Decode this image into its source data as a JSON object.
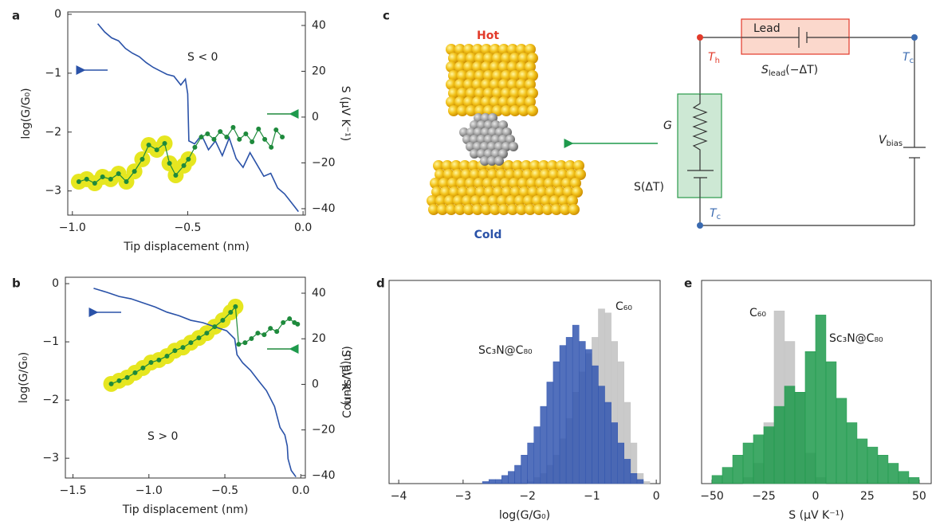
{
  "chart_data": [
    {
      "type": "line",
      "panel_label": "a",
      "xlabel": "Tip displacement (nm)",
      "ylabel": "log(G/G₀)",
      "y2label": "S (μV K⁻¹)",
      "annotation": "S < 0",
      "xlim": [
        -1.02,
        0.01
      ],
      "xticks": [
        {
          "value": -1,
          "label": "−1.0"
        },
        {
          "value": -0.5,
          "label": "−0.5"
        },
        {
          "value": 0,
          "label": "0.0"
        }
      ],
      "ylim": [
        -3.41,
        0.04
      ],
      "yticks": [
        0,
        {
          "value": -1,
          "label": "−1"
        },
        {
          "value": -2,
          "label": "−2"
        },
        {
          "value": -3,
          "label": "−3"
        }
      ],
      "y2lim": [
        -42.8,
        45.9
      ],
      "y2ticks": [
        40,
        20,
        0,
        {
          "value": -20,
          "label": "−20"
        },
        {
          "value": -40,
          "label": "−40"
        }
      ],
      "series": [
        {
          "color": "#2a52a8",
          "x": [
            -0.89,
            -0.86,
            -0.83,
            -0.8,
            -0.77,
            -0.74,
            -0.71,
            -0.68,
            -0.65,
            -0.62,
            -0.59,
            -0.56,
            -0.53,
            -0.51,
            -0.5,
            -0.495,
            -0.47,
            -0.44,
            -0.41,
            -0.38,
            -0.35,
            -0.32,
            -0.29,
            -0.26,
            -0.23,
            -0.2,
            -0.17,
            -0.14,
            -0.11,
            -0.08,
            -0.06,
            -0.04,
            -0.02
          ],
          "values": [
            -0.16,
            -0.3,
            -0.4,
            -0.45,
            -0.58,
            -0.66,
            -0.72,
            -0.82,
            -0.9,
            -0.96,
            -1.02,
            -1.05,
            -1.2,
            -1.1,
            -1.35,
            -2.15,
            -2.2,
            -2.05,
            -2.3,
            -2.15,
            -2.4,
            -2.1,
            -2.45,
            -2.6,
            -2.35,
            -2.55,
            -2.75,
            -2.7,
            -2.95,
            -3.05,
            -3.15,
            -3.25,
            -3.35
          ]
        },
        {
          "color": "#1e8a3c",
          "axis": "y2",
          "marker": "circle",
          "highlight_color": "#e6e620",
          "x": [
            -0.972,
            -0.938,
            -0.903,
            -0.869,
            -0.834,
            -0.8,
            -0.766,
            -0.731,
            -0.697,
            -0.669,
            -0.634,
            -0.6,
            -0.579,
            -0.552,
            -0.517,
            -0.497,
            -0.469,
            -0.441,
            -0.414,
            -0.386,
            -0.359,
            -0.331,
            -0.303,
            -0.276,
            -0.248,
            -0.221,
            -0.193,
            -0.166,
            -0.138,
            -0.117,
            -0.09
          ],
          "values": [
            -28.2,
            -27.1,
            -28.9,
            -26.1,
            -27.1,
            -24.7,
            -28.2,
            -23.7,
            -18.4,
            -12.2,
            -14.3,
            -11.5,
            -20.2,
            -25.4,
            -21.2,
            -18.4,
            -13.2,
            -8.7,
            -7.3,
            -9.7,
            -6.3,
            -8.7,
            -4.5,
            -9.7,
            -7.3,
            -10.8,
            -5.2,
            -9.7,
            -13.2,
            -5.6,
            -8.7
          ],
          "highlight": [
            true,
            true,
            true,
            true,
            true,
            true,
            true,
            true,
            true,
            true,
            true,
            true,
            true,
            true,
            true,
            true,
            false,
            false,
            false,
            false,
            false,
            false,
            false,
            false,
            false,
            false,
            false,
            false,
            false,
            false,
            false
          ]
        }
      ]
    },
    {
      "type": "line",
      "panel_label": "b",
      "xlabel": "Tip displacement (nm)",
      "ylabel": "log(G/G₀)",
      "y2label": "S (μV K⁻¹)",
      "annotation": "S > 0",
      "xlim": [
        -1.55,
        0.03
      ],
      "xticks": [
        {
          "value": -1.5,
          "label": "−1.5"
        },
        {
          "value": -1,
          "label": "−1.0"
        },
        {
          "value": -0.5,
          "label": "−0.5"
        },
        {
          "value": 0,
          "label": "0.0"
        }
      ],
      "ylim": [
        -3.34,
        0.11
      ],
      "yticks": [
        0,
        {
          "value": -1,
          "label": "−1"
        },
        {
          "value": -2,
          "label": "−2"
        },
        {
          "value": -3,
          "label": "−3"
        }
      ],
      "y2lim": [
        -41.1,
        47.0
      ],
      "y2ticks": [
        40,
        20,
        0,
        {
          "value": -20,
          "label": "−20"
        },
        {
          "value": -40,
          "label": "−40"
        }
      ],
      "series": [
        {
          "color": "#2a52a8",
          "x": [
            -1.364,
            -1.275,
            -1.196,
            -1.118,
            -1.039,
            -0.96,
            -0.881,
            -0.802,
            -0.724,
            -0.645,
            -0.567,
            -0.488,
            -0.435,
            -0.42,
            -0.383,
            -0.331,
            -0.278,
            -0.226,
            -0.173,
            -0.137,
            -0.105,
            -0.089,
            -0.084,
            -0.063,
            -0.032
          ],
          "values": [
            -0.08,
            -0.15,
            -0.22,
            -0.26,
            -0.33,
            -0.4,
            -0.49,
            -0.55,
            -0.63,
            -0.67,
            -0.74,
            -0.81,
            -0.95,
            -1.22,
            -1.36,
            -1.49,
            -1.67,
            -1.84,
            -2.11,
            -2.47,
            -2.6,
            -2.79,
            -3.01,
            -3.21,
            -3.32
          ]
        },
        {
          "color": "#1e8a3c",
          "axis": "y2",
          "marker": "circle",
          "highlight_color": "#e6e620",
          "x": [
            -1.248,
            -1.196,
            -1.143,
            -1.091,
            -1.039,
            -0.986,
            -0.934,
            -0.881,
            -0.829,
            -0.776,
            -0.724,
            -0.671,
            -0.619,
            -0.567,
            -0.514,
            -0.462,
            -0.43,
            -0.409,
            -0.367,
            -0.325,
            -0.283,
            -0.241,
            -0.2,
            -0.158,
            -0.116,
            -0.074,
            -0.042,
            -0.021
          ],
          "values": [
            0.2,
            1.6,
            3.0,
            5.1,
            7.2,
            9.6,
            10.7,
            12.4,
            14.8,
            16.2,
            18.3,
            20.4,
            22.5,
            25.3,
            28.1,
            31.6,
            34.1,
            17.6,
            18.3,
            20.1,
            22.5,
            21.8,
            24.6,
            23.2,
            27.1,
            28.8,
            27.1,
            26.4
          ],
          "highlight": [
            true,
            true,
            true,
            true,
            true,
            true,
            true,
            true,
            true,
            true,
            true,
            true,
            true,
            true,
            true,
            true,
            true,
            false,
            false,
            false,
            false,
            false,
            false,
            false,
            false,
            false,
            false,
            false
          ]
        }
      ]
    },
    {
      "type": "histogram",
      "panel_label": "d",
      "xlabel": "log(G/G₀)",
      "ylabel": "Counts (a.u.)",
      "xlim": [
        -4.15,
        0.06
      ],
      "xticks": [
        {
          "value": -4,
          "label": "−4"
        },
        {
          "value": -3,
          "label": "−3"
        },
        {
          "value": -2,
          "label": "−2"
        },
        {
          "value": -1,
          "label": "−1"
        },
        0
      ],
      "ylim": [
        0,
        100
      ],
      "bins": [
        -2.7,
        -2.6,
        -2.5,
        -2.4,
        -2.3,
        -2.2,
        -2.1,
        -2.0,
        -1.9,
        -1.8,
        -1.7,
        -1.6,
        -1.5,
        -1.4,
        -1.3,
        -1.2,
        -1.1,
        -1.0,
        -0.9,
        -0.8,
        -0.7,
        -0.6,
        -0.5,
        -0.4,
        -0.3,
        -0.2,
        -0.1
      ],
      "series": [
        {
          "name": "C₆₀",
          "color": "#c4c4c4",
          "values": [
            0,
            0,
            0,
            0,
            0,
            0,
            0,
            1,
            3,
            5,
            9,
            14,
            22,
            32,
            45,
            55,
            64,
            72,
            86,
            84,
            70,
            60,
            40,
            20,
            5,
            1
          ]
        },
        {
          "name": "Sc₃N@C₈₀",
          "color": "#3457b0",
          "values": [
            1,
            2,
            2,
            4,
            6,
            9,
            14,
            20,
            28,
            38,
            50,
            60,
            68,
            72,
            78,
            70,
            66,
            58,
            48,
            40,
            30,
            20,
            12,
            5,
            2,
            0
          ]
        }
      ]
    },
    {
      "type": "histogram",
      "panel_label": "e",
      "xlabel": "S (μV K⁻¹)",
      "xlim": [
        -55,
        55.8
      ],
      "xticks": [
        {
          "value": -50,
          "label": "−50"
        },
        {
          "value": -25,
          "label": "−25"
        },
        0,
        25,
        50
      ],
      "ylim": [
        0,
        100
      ],
      "bins": [
        -50,
        -45,
        -40,
        -35,
        -30,
        -25,
        -20,
        -15,
        -10,
        -5,
        0,
        5,
        10,
        15,
        20,
        25,
        30,
        35,
        40,
        45,
        50
      ],
      "series": [
        {
          "name": "C₆₀",
          "color": "#c4c4c4",
          "values": [
            0,
            0,
            0,
            3,
            10,
            30,
            85,
            70,
            45,
            15,
            3,
            0,
            0,
            0,
            0,
            0,
            0,
            0,
            0,
            0
          ]
        },
        {
          "name": "Sc₃N@C₈₀",
          "color": "#1f9a4c",
          "values": [
            4,
            8,
            14,
            20,
            24,
            28,
            38,
            48,
            45,
            65,
            83,
            60,
            42,
            30,
            22,
            18,
            14,
            10,
            6,
            3
          ]
        }
      ]
    }
  ],
  "diagram": {
    "panel_label": "c",
    "hot": "Hot",
    "cold": "Cold",
    "lead": "Lead",
    "t_hot": {
      "main": "T",
      "sub": "h"
    },
    "t_cold_top": {
      "main": "T",
      "sub": "c"
    },
    "t_cold_bottom": {
      "main": "T",
      "sub": "c"
    },
    "s_lead": {
      "main": "S",
      "sub": "lead",
      "rest": "(−ΔT)"
    },
    "conductance": "G",
    "seebeck": "S(ΔT)",
    "v_bias": {
      "main": "V",
      "sub": "bias"
    }
  }
}
